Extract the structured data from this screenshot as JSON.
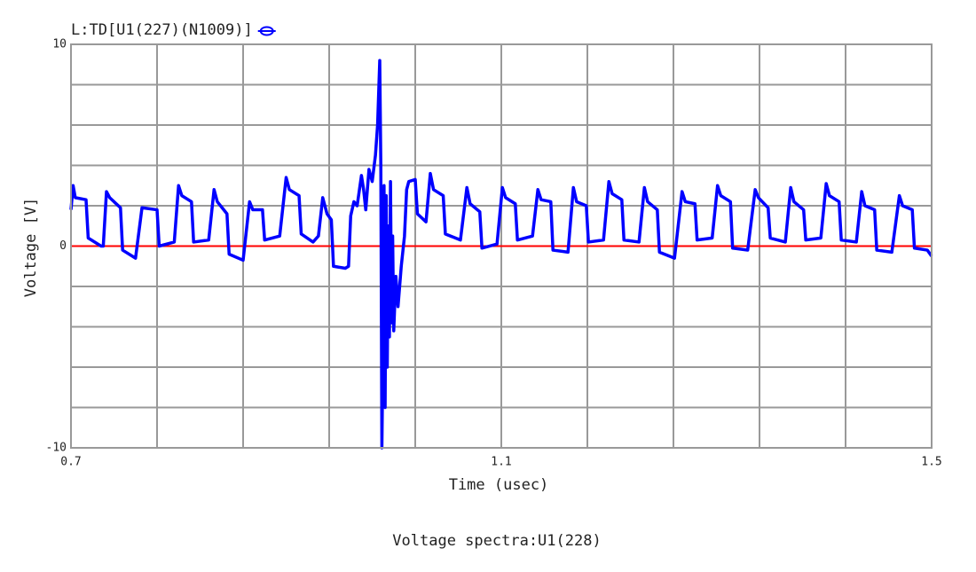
{
  "chart_data": {
    "type": "line",
    "caption": "Voltage spectra:U1(228)",
    "xlabel": "Time (usec)",
    "ylabel": "Voltage [V]",
    "xlim": [
      0.7,
      1.5
    ],
    "ylim": [
      -10,
      10
    ],
    "xticks": [
      0.7,
      1.1,
      1.5
    ],
    "yticks": [
      -10,
      0,
      10
    ],
    "grid": true,
    "legend": "top-left",
    "reference_line": {
      "value": 0,
      "color": "#ff0000"
    },
    "x": [
      0.7,
      0.702,
      0.704,
      0.714,
      0.716,
      0.728,
      0.73,
      0.733,
      0.736,
      0.746,
      0.748,
      0.76,
      0.766,
      0.78,
      0.782,
      0.796,
      0.8,
      0.803,
      0.812,
      0.814,
      0.828,
      0.833,
      0.836,
      0.845,
      0.847,
      0.86,
      0.866,
      0.869,
      0.878,
      0.88,
      0.894,
      0.9,
      0.903,
      0.912,
      0.914,
      0.925,
      0.93,
      0.934,
      0.938,
      0.942,
      0.944,
      0.955,
      0.958,
      0.96,
      0.963,
      0.966,
      0.97,
      0.972,
      0.974,
      0.977,
      0.98,
      0.983,
      0.985,
      0.987,
      0.988,
      0.989,
      0.99,
      0.991,
      0.992,
      0.993,
      0.994,
      0.995,
      0.996,
      0.997,
      0.998,
      0.999,
      1.0,
      1.002,
      1.004,
      1.007,
      1.01,
      1.012,
      1.014,
      1.02,
      1.022,
      1.03,
      1.034,
      1.037,
      1.046,
      1.048,
      1.062,
      1.068,
      1.071,
      1.08,
      1.082,
      1.096,
      1.101,
      1.104,
      1.113,
      1.115,
      1.129,
      1.134,
      1.137,
      1.146,
      1.148,
      1.162,
      1.167,
      1.17,
      1.179,
      1.181,
      1.195,
      1.2,
      1.203,
      1.212,
      1.214,
      1.228,
      1.233,
      1.236,
      1.245,
      1.247,
      1.261,
      1.268,
      1.271,
      1.28,
      1.282,
      1.296,
      1.301,
      1.304,
      1.313,
      1.315,
      1.329,
      1.336,
      1.339,
      1.348,
      1.35,
      1.364,
      1.369,
      1.372,
      1.381,
      1.383,
      1.397,
      1.402,
      1.405,
      1.414,
      1.416,
      1.43,
      1.435,
      1.438,
      1.447,
      1.449,
      1.463,
      1.47,
      1.473,
      1.482,
      1.484,
      1.496,
      1.5
    ],
    "series": [
      {
        "name": "L:TD[U1(227)(N1009)]",
        "color": "#0000ff",
        "values": [
          1.8,
          3.0,
          2.4,
          2.3,
          0.4,
          0.0,
          0.0,
          2.7,
          2.4,
          1.9,
          -0.2,
          -0.6,
          1.9,
          1.8,
          0.0,
          0.2,
          3.0,
          2.5,
          2.2,
          0.2,
          0.3,
          2.8,
          2.2,
          1.6,
          -0.4,
          -0.7,
          2.2,
          1.8,
          1.8,
          0.3,
          0.5,
          3.4,
          2.8,
          2.5,
          0.6,
          0.2,
          0.5,
          2.4,
          1.6,
          1.3,
          -1.0,
          -1.1,
          -1.0,
          1.5,
          2.2,
          2.0,
          3.5,
          2.8,
          1.8,
          3.8,
          3.2,
          4.5,
          6.0,
          9.2,
          4.0,
          -10,
          -5,
          3.0,
          -8,
          2.5,
          -6,
          1.0,
          -4.5,
          3.2,
          -3.8,
          0.5,
          -4.2,
          -1.5,
          -3.0,
          -1.0,
          0.5,
          2.8,
          3.2,
          3.3,
          1.6,
          1.2,
          3.6,
          2.8,
          2.5,
          0.6,
          0.3,
          2.9,
          2.1,
          1.7,
          -0.1,
          0.1,
          2.9,
          2.4,
          2.1,
          0.3,
          0.5,
          2.8,
          2.3,
          2.2,
          -0.2,
          -0.3,
          2.9,
          2.2,
          2.0,
          0.2,
          0.3,
          3.2,
          2.6,
          2.3,
          0.3,
          0.2,
          2.9,
          2.2,
          1.8,
          -0.3,
          -0.6,
          2.7,
          2.2,
          2.1,
          0.3,
          0.4,
          3.0,
          2.5,
          2.2,
          -0.1,
          -0.2,
          2.8,
          2.4,
          1.9,
          0.4,
          0.2,
          2.9,
          2.2,
          1.8,
          0.3,
          0.4,
          3.1,
          2.5,
          2.2,
          0.3,
          0.2,
          2.7,
          2.0,
          1.8,
          -0.2,
          -0.3,
          2.5,
          2.0,
          1.8,
          -0.1,
          -0.2,
          -0.5
        ]
      }
    ]
  }
}
